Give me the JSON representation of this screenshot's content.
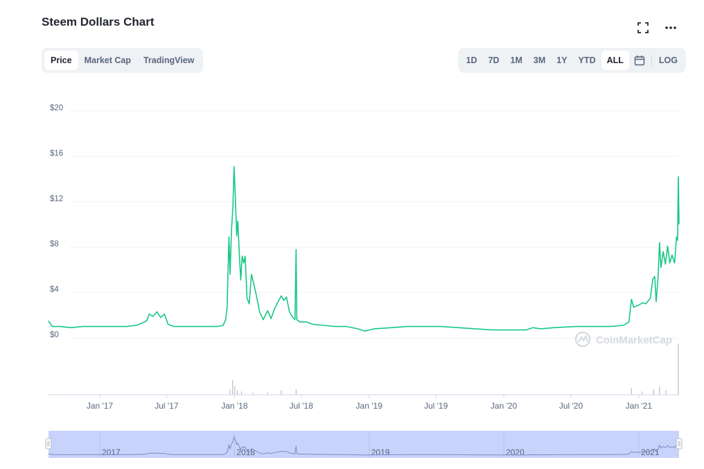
{
  "header": {
    "title": "Steem Dollars Chart",
    "icons": [
      "fullscreen-icon",
      "more-icon"
    ]
  },
  "tabs": [
    {
      "label": "Price",
      "active": true
    },
    {
      "label": "Market Cap",
      "active": false
    },
    {
      "label": "TradingView",
      "active": false
    }
  ],
  "ranges": [
    {
      "label": "1D",
      "active": false
    },
    {
      "label": "7D",
      "active": false
    },
    {
      "label": "1M",
      "active": false
    },
    {
      "label": "3M",
      "active": false
    },
    {
      "label": "1Y",
      "active": false
    },
    {
      "label": "YTD",
      "active": false
    },
    {
      "label": "ALL",
      "active": true
    }
  ],
  "log_label": "LOG",
  "watermark": "CoinMarketCap",
  "colors": {
    "line": "#16c784",
    "grid": "#eff2f5",
    "volume": "#b7bdc6",
    "navigator": "#c9d2fb",
    "navigator_line": "#7a8bc0"
  },
  "chart_data": {
    "type": "line",
    "title": "Steem Dollars Chart",
    "y_tick_labels": [
      "$0",
      "$4",
      "$8",
      "$12",
      "$16",
      "$20"
    ],
    "ylim": [
      0,
      20
    ],
    "x_tick_labels": [
      "Jan '17",
      "Jul '17",
      "Jan '18",
      "Jul '18",
      "Jan '19",
      "Jul '19",
      "Jan '20",
      "Jul '20",
      "Jan '21"
    ],
    "navigator_years": [
      "2017",
      "2018",
      "2019",
      "2020",
      "2021"
    ],
    "grid": true,
    "xlim": [
      "2016-08-15",
      "2021-04-20"
    ],
    "series": [
      {
        "values": [
          [
            "2016-08-15",
            1.5
          ],
          [
            "2016-08-25",
            1.0
          ],
          [
            "2016-09-15",
            1.0
          ],
          [
            "2016-10-15",
            0.9
          ],
          [
            "2016-11-15",
            1.0
          ],
          [
            "2016-12-15",
            1.0
          ],
          [
            "2017-01-15",
            1.0
          ],
          [
            "2017-02-15",
            1.0
          ],
          [
            "2017-03-15",
            1.0
          ],
          [
            "2017-04-10",
            1.1
          ],
          [
            "2017-04-25",
            1.3
          ],
          [
            "2017-05-08",
            1.5
          ],
          [
            "2017-05-15",
            2.1
          ],
          [
            "2017-05-25",
            1.9
          ],
          [
            "2017-06-05",
            2.3
          ],
          [
            "2017-06-15",
            1.8
          ],
          [
            "2017-06-25",
            2.1
          ],
          [
            "2017-07-05",
            1.2
          ],
          [
            "2017-07-20",
            1.0
          ],
          [
            "2017-08-15",
            1.0
          ],
          [
            "2017-09-15",
            1.0
          ],
          [
            "2017-10-15",
            1.0
          ],
          [
            "2017-11-15",
            1.0
          ],
          [
            "2017-12-01",
            1.1
          ],
          [
            "2017-12-08",
            1.6
          ],
          [
            "2017-12-12",
            2.6
          ],
          [
            "2017-12-17",
            8.9
          ],
          [
            "2017-12-20",
            5.6
          ],
          [
            "2017-12-24",
            9.5
          ],
          [
            "2017-12-28",
            11.6
          ],
          [
            "2017-12-31",
            15.1
          ],
          [
            "2018-01-03",
            12.8
          ],
          [
            "2018-01-07",
            9.0
          ],
          [
            "2018-01-10",
            10.3
          ],
          [
            "2018-01-14",
            7.5
          ],
          [
            "2018-01-18",
            5.1
          ],
          [
            "2018-01-22",
            7.2
          ],
          [
            "2018-01-26",
            6.6
          ],
          [
            "2018-01-30",
            7.2
          ],
          [
            "2018-02-04",
            3.5
          ],
          [
            "2018-02-10",
            3.0
          ],
          [
            "2018-02-16",
            5.6
          ],
          [
            "2018-02-22",
            4.8
          ],
          [
            "2018-03-01",
            3.8
          ],
          [
            "2018-03-10",
            2.3
          ],
          [
            "2018-03-20",
            1.6
          ],
          [
            "2018-04-01",
            2.4
          ],
          [
            "2018-04-10",
            1.7
          ],
          [
            "2018-04-20",
            2.6
          ],
          [
            "2018-05-01",
            3.3
          ],
          [
            "2018-05-08",
            3.7
          ],
          [
            "2018-05-15",
            3.3
          ],
          [
            "2018-05-22",
            3.6
          ],
          [
            "2018-05-30",
            2.3
          ],
          [
            "2018-06-08",
            1.8
          ],
          [
            "2018-06-14",
            1.6
          ],
          [
            "2018-06-17",
            7.8
          ],
          [
            "2018-06-19",
            1.6
          ],
          [
            "2018-06-28",
            1.4
          ],
          [
            "2018-07-15",
            1.4
          ],
          [
            "2018-08-01",
            1.2
          ],
          [
            "2018-09-01",
            1.1
          ],
          [
            "2018-10-01",
            1.0
          ],
          [
            "2018-11-01",
            1.0
          ],
          [
            "2018-12-01",
            0.8
          ],
          [
            "2018-12-20",
            0.6
          ],
          [
            "2019-01-15",
            0.8
          ],
          [
            "2019-03-01",
            0.9
          ],
          [
            "2019-04-15",
            1.0
          ],
          [
            "2019-06-01",
            1.0
          ],
          [
            "2019-07-15",
            1.0
          ],
          [
            "2019-09-01",
            0.9
          ],
          [
            "2019-10-15",
            0.8
          ],
          [
            "2019-12-01",
            0.7
          ],
          [
            "2020-01-15",
            0.7
          ],
          [
            "2020-03-01",
            0.7
          ],
          [
            "2020-03-20",
            0.9
          ],
          [
            "2020-04-10",
            0.8
          ],
          [
            "2020-05-15",
            0.9
          ],
          [
            "2020-07-15",
            1.0
          ],
          [
            "2020-09-01",
            1.0
          ],
          [
            "2020-10-15",
            1.0
          ],
          [
            "2020-11-20",
            1.1
          ],
          [
            "2020-12-05",
            1.4
          ],
          [
            "2020-12-12",
            3.4
          ],
          [
            "2020-12-18",
            2.7
          ],
          [
            "2021-01-01",
            2.9
          ],
          [
            "2021-01-12",
            3.1
          ],
          [
            "2021-01-20",
            3.0
          ],
          [
            "2021-02-01",
            3.5
          ],
          [
            "2021-02-08",
            5.2
          ],
          [
            "2021-02-13",
            5.4
          ],
          [
            "2021-02-17",
            3.2
          ],
          [
            "2021-02-22",
            5.2
          ],
          [
            "2021-02-26",
            8.4
          ],
          [
            "2021-03-02",
            6.2
          ],
          [
            "2021-03-08",
            7.6
          ],
          [
            "2021-03-14",
            6.5
          ],
          [
            "2021-03-20",
            8.1
          ],
          [
            "2021-03-26",
            6.6
          ],
          [
            "2021-04-01",
            7.3
          ],
          [
            "2021-04-08",
            6.6
          ],
          [
            "2021-04-13",
            8.9
          ],
          [
            "2021-04-16",
            8.6
          ],
          [
            "2021-04-18",
            14.2
          ],
          [
            "2021-04-20",
            10.0
          ]
        ]
      }
    ],
    "volume": [
      [
        "2017-12-20",
        0.25
      ],
      [
        "2017-12-27",
        0.65
      ],
      [
        "2018-01-02",
        0.4
      ],
      [
        "2018-01-09",
        0.2
      ],
      [
        "2018-01-20",
        0.15
      ],
      [
        "2018-02-20",
        0.1
      ],
      [
        "2018-04-01",
        0.1
      ],
      [
        "2018-05-08",
        0.2
      ],
      [
        "2018-06-17",
        0.25
      ],
      [
        "2020-12-12",
        0.3
      ],
      [
        "2021-01-10",
        0.15
      ],
      [
        "2021-02-10",
        0.25
      ],
      [
        "2021-02-26",
        0.35
      ],
      [
        "2021-03-15",
        0.2
      ],
      [
        "2021-04-18",
        2.3
      ]
    ]
  }
}
